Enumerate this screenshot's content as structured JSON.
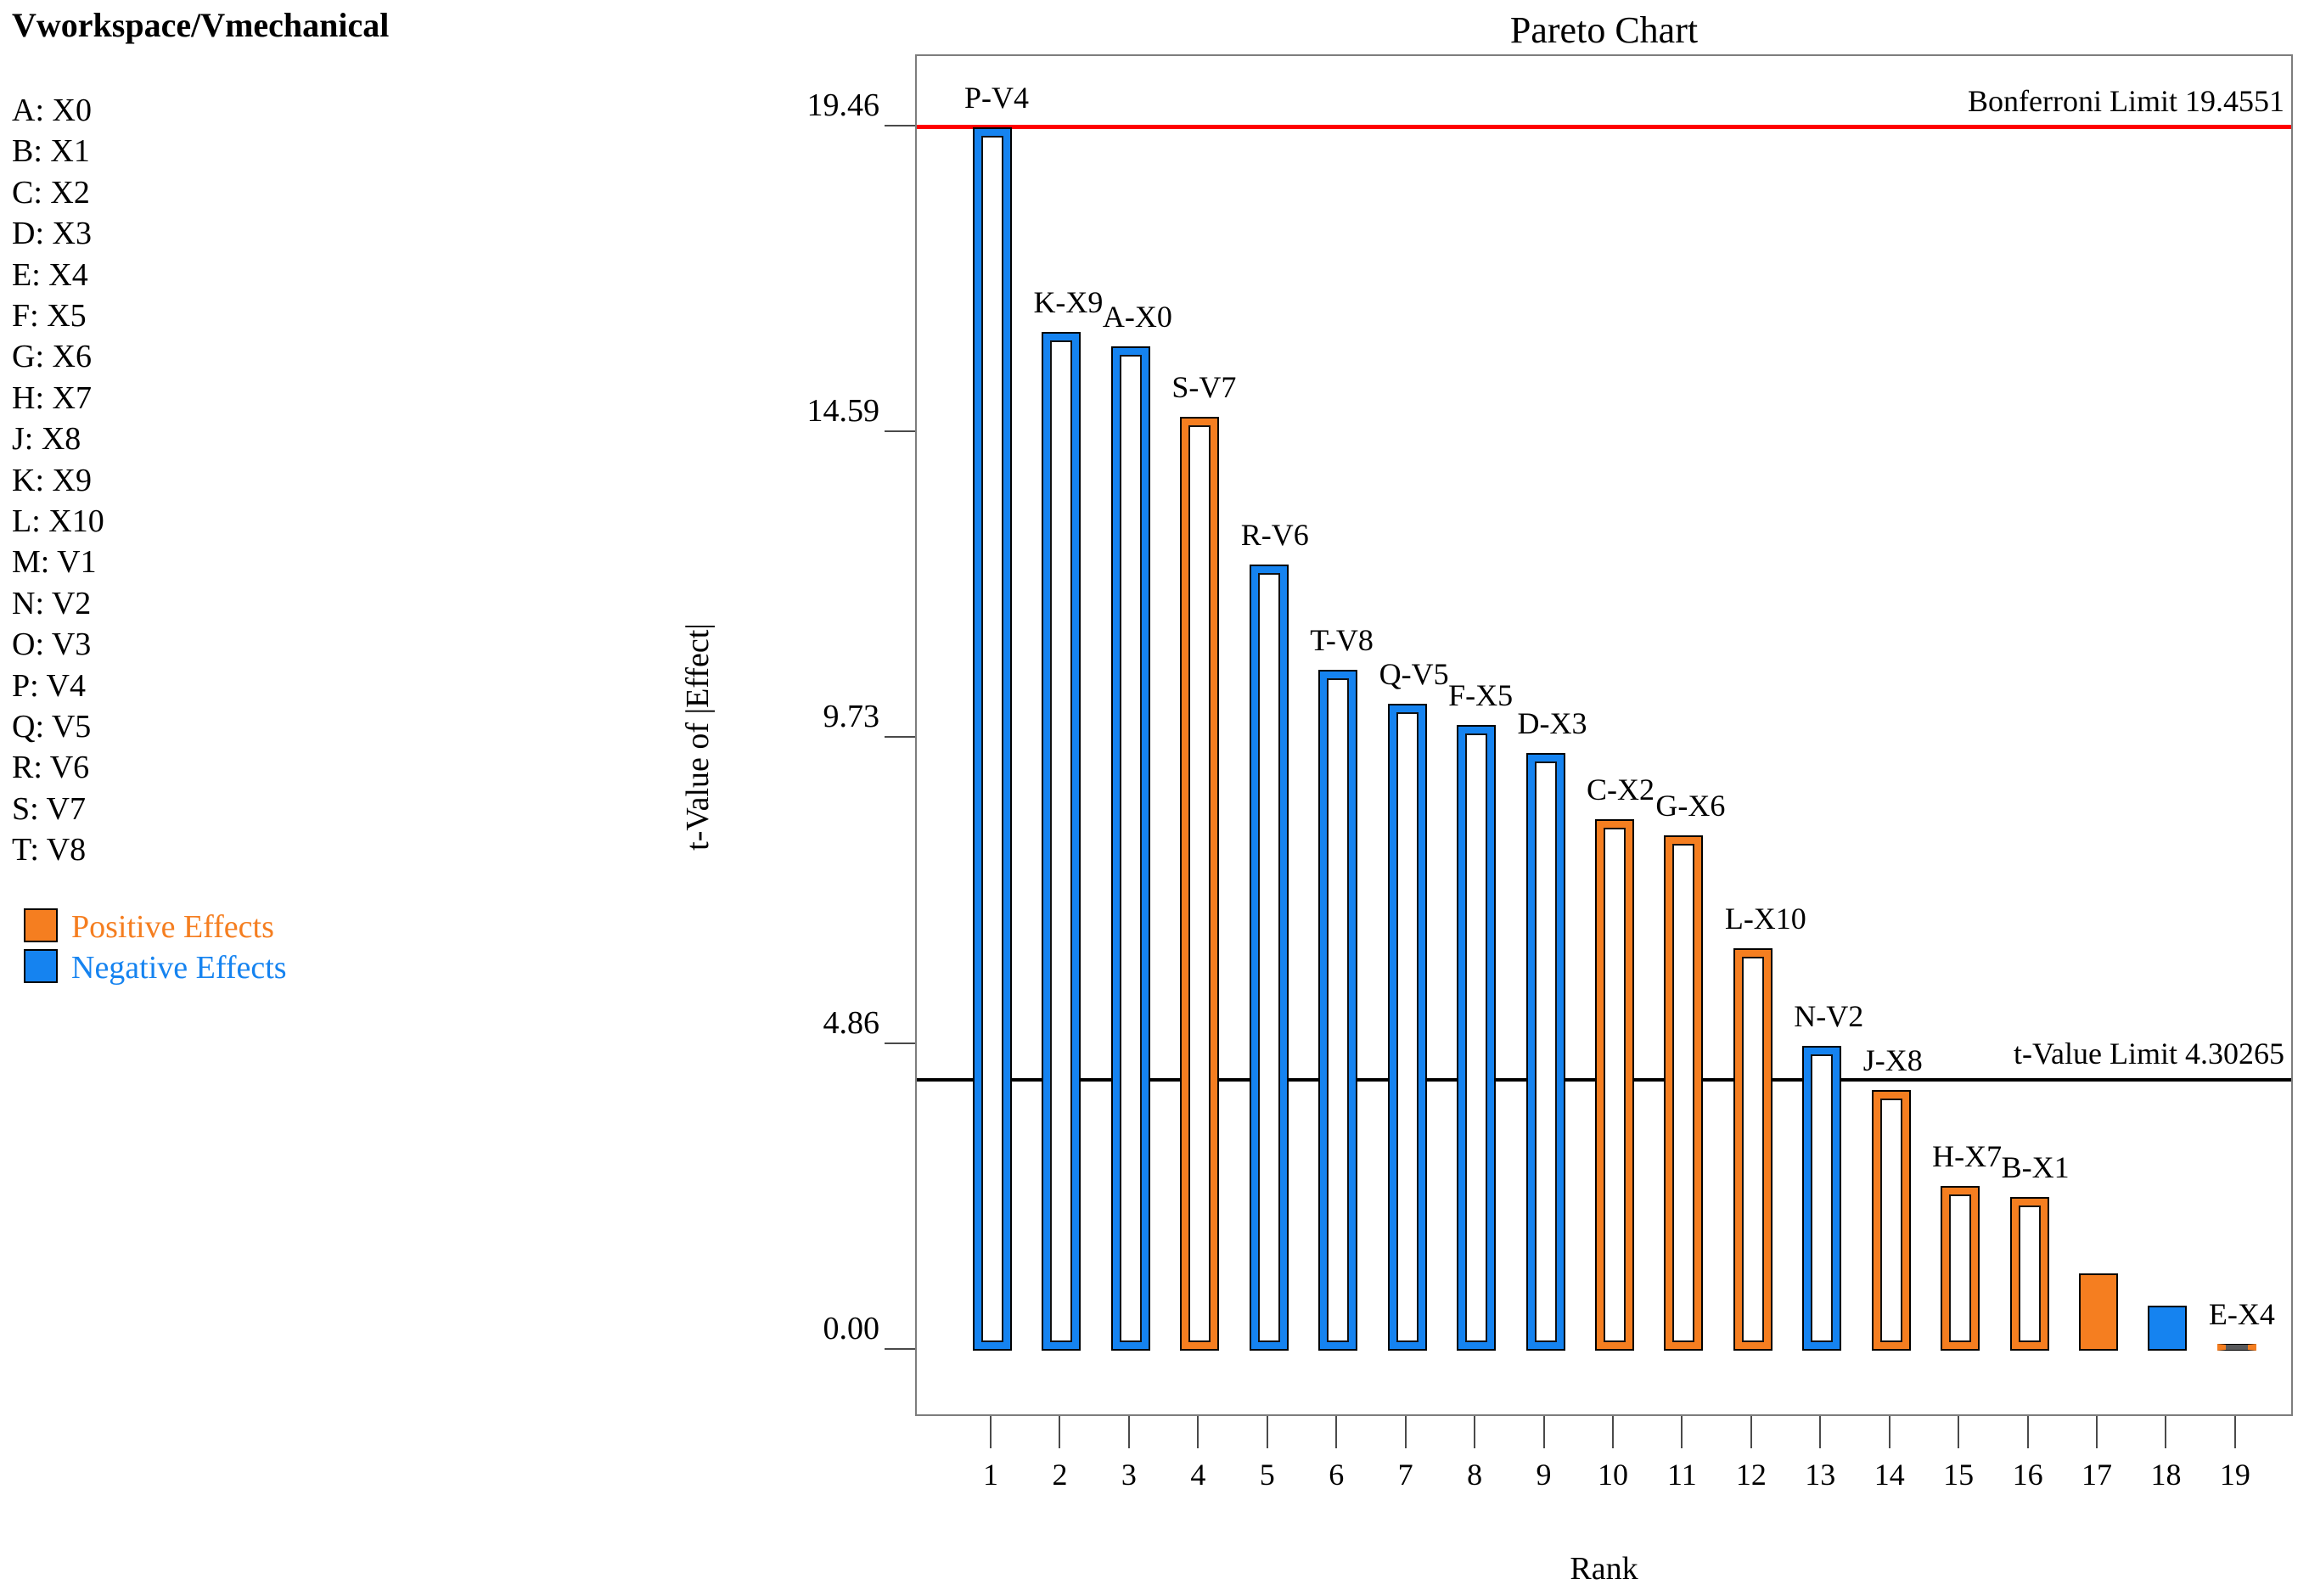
{
  "panel": {
    "header": "Vworkspace/Vmechanical",
    "factors": [
      {
        "code": "A",
        "name": "X0"
      },
      {
        "code": "B",
        "name": "X1"
      },
      {
        "code": "C",
        "name": "X2"
      },
      {
        "code": "D",
        "name": "X3"
      },
      {
        "code": "E",
        "name": "X4"
      },
      {
        "code": "F",
        "name": "X5"
      },
      {
        "code": "G",
        "name": "X6"
      },
      {
        "code": "H",
        "name": "X7"
      },
      {
        "code": "J",
        "name": "X8"
      },
      {
        "code": "K",
        "name": "X9"
      },
      {
        "code": "L",
        "name": "X10"
      },
      {
        "code": "M",
        "name": "V1"
      },
      {
        "code": "N",
        "name": "V2"
      },
      {
        "code": "O",
        "name": "V3"
      },
      {
        "code": "P",
        "name": "V4"
      },
      {
        "code": "Q",
        "name": "V5"
      },
      {
        "code": "R",
        "name": "V6"
      },
      {
        "code": "S",
        "name": "V7"
      },
      {
        "code": "T",
        "name": "V8"
      }
    ],
    "legend": [
      {
        "label": "Positive Effects",
        "color": "#F57E20"
      },
      {
        "label": "Negative Effects",
        "color": "#1583F0"
      }
    ]
  },
  "chart_data": {
    "type": "bar",
    "title": "Pareto Chart",
    "xlabel": "Rank",
    "ylabel": "t-Value of |Effect|",
    "ylim": [
      0,
      19.46
    ],
    "yticks": [
      0.0,
      4.86,
      9.73,
      14.59,
      19.46
    ],
    "ytick_labels": [
      "0.00",
      "4.86",
      "9.73",
      "14.59",
      "19.46"
    ],
    "x": [
      1,
      2,
      3,
      4,
      5,
      6,
      7,
      8,
      9,
      10,
      11,
      12,
      13,
      14,
      15,
      16,
      17,
      18,
      19
    ],
    "bars": [
      {
        "rank": 1,
        "label": "P-V4",
        "effect": "negative",
        "value": 19.45,
        "style": "hollow"
      },
      {
        "rank": 2,
        "label": "K-X9",
        "effect": "negative",
        "value": 16.2,
        "style": "hollow"
      },
      {
        "rank": 3,
        "label": "A-X0",
        "effect": "negative",
        "value": 15.97,
        "style": "hollow"
      },
      {
        "rank": 4,
        "label": "S-V7",
        "effect": "positive",
        "value": 14.85,
        "style": "hollow"
      },
      {
        "rank": 5,
        "label": "R-V6",
        "effect": "negative",
        "value": 12.5,
        "style": "hollow"
      },
      {
        "rank": 6,
        "label": "T-V8",
        "effect": "negative",
        "value": 10.83,
        "style": "hollow"
      },
      {
        "rank": 7,
        "label": "Q-V5",
        "effect": "negative",
        "value": 10.29,
        "style": "hollow"
      },
      {
        "rank": 8,
        "label": "F-X5",
        "effect": "negative",
        "value": 9.95,
        "style": "hollow"
      },
      {
        "rank": 9,
        "label": "D-X3",
        "effect": "negative",
        "value": 9.5,
        "style": "hollow"
      },
      {
        "rank": 10,
        "label": "C-X2",
        "effect": "positive",
        "value": 8.45,
        "style": "hollow"
      },
      {
        "rank": 11,
        "label": "G-X6",
        "effect": "positive",
        "value": 8.19,
        "style": "hollow"
      },
      {
        "rank": 12,
        "label": "L-X10",
        "effect": "positive",
        "value": 6.4,
        "style": "hollow"
      },
      {
        "rank": 13,
        "label": "N-V2",
        "effect": "negative",
        "value": 4.85,
        "style": "hollow"
      },
      {
        "rank": 14,
        "label": "J-X8",
        "effect": "positive",
        "value": 4.14,
        "style": "hollow"
      },
      {
        "rank": 15,
        "label": "H-X7",
        "effect": "positive",
        "value": 2.62,
        "style": "hollow"
      },
      {
        "rank": 16,
        "label": "B-X1",
        "effect": "positive",
        "value": 2.45,
        "style": "hollow"
      },
      {
        "rank": 17,
        "label": "",
        "effect": "positive",
        "value": 1.23,
        "style": "solid"
      },
      {
        "rank": 18,
        "label": "",
        "effect": "negative",
        "value": 0.72,
        "style": "solid"
      },
      {
        "rank": 19,
        "label": "E-X4",
        "effect": "positive",
        "value": 0.1,
        "style": "tiny"
      }
    ],
    "limits": [
      {
        "name": "bonferroni",
        "label": "Bonferroni Limit 19.4551",
        "value": 19.4551,
        "color": "#FF0000",
        "thickness": 5
      },
      {
        "name": "t-value",
        "label": "t-Value Limit 4.30265",
        "value": 4.30265,
        "color": "#000000",
        "thickness": 4
      }
    ],
    "colors": {
      "positive": "#F57E20",
      "negative": "#1583F0"
    },
    "legend_position": "left",
    "grid": false
  }
}
